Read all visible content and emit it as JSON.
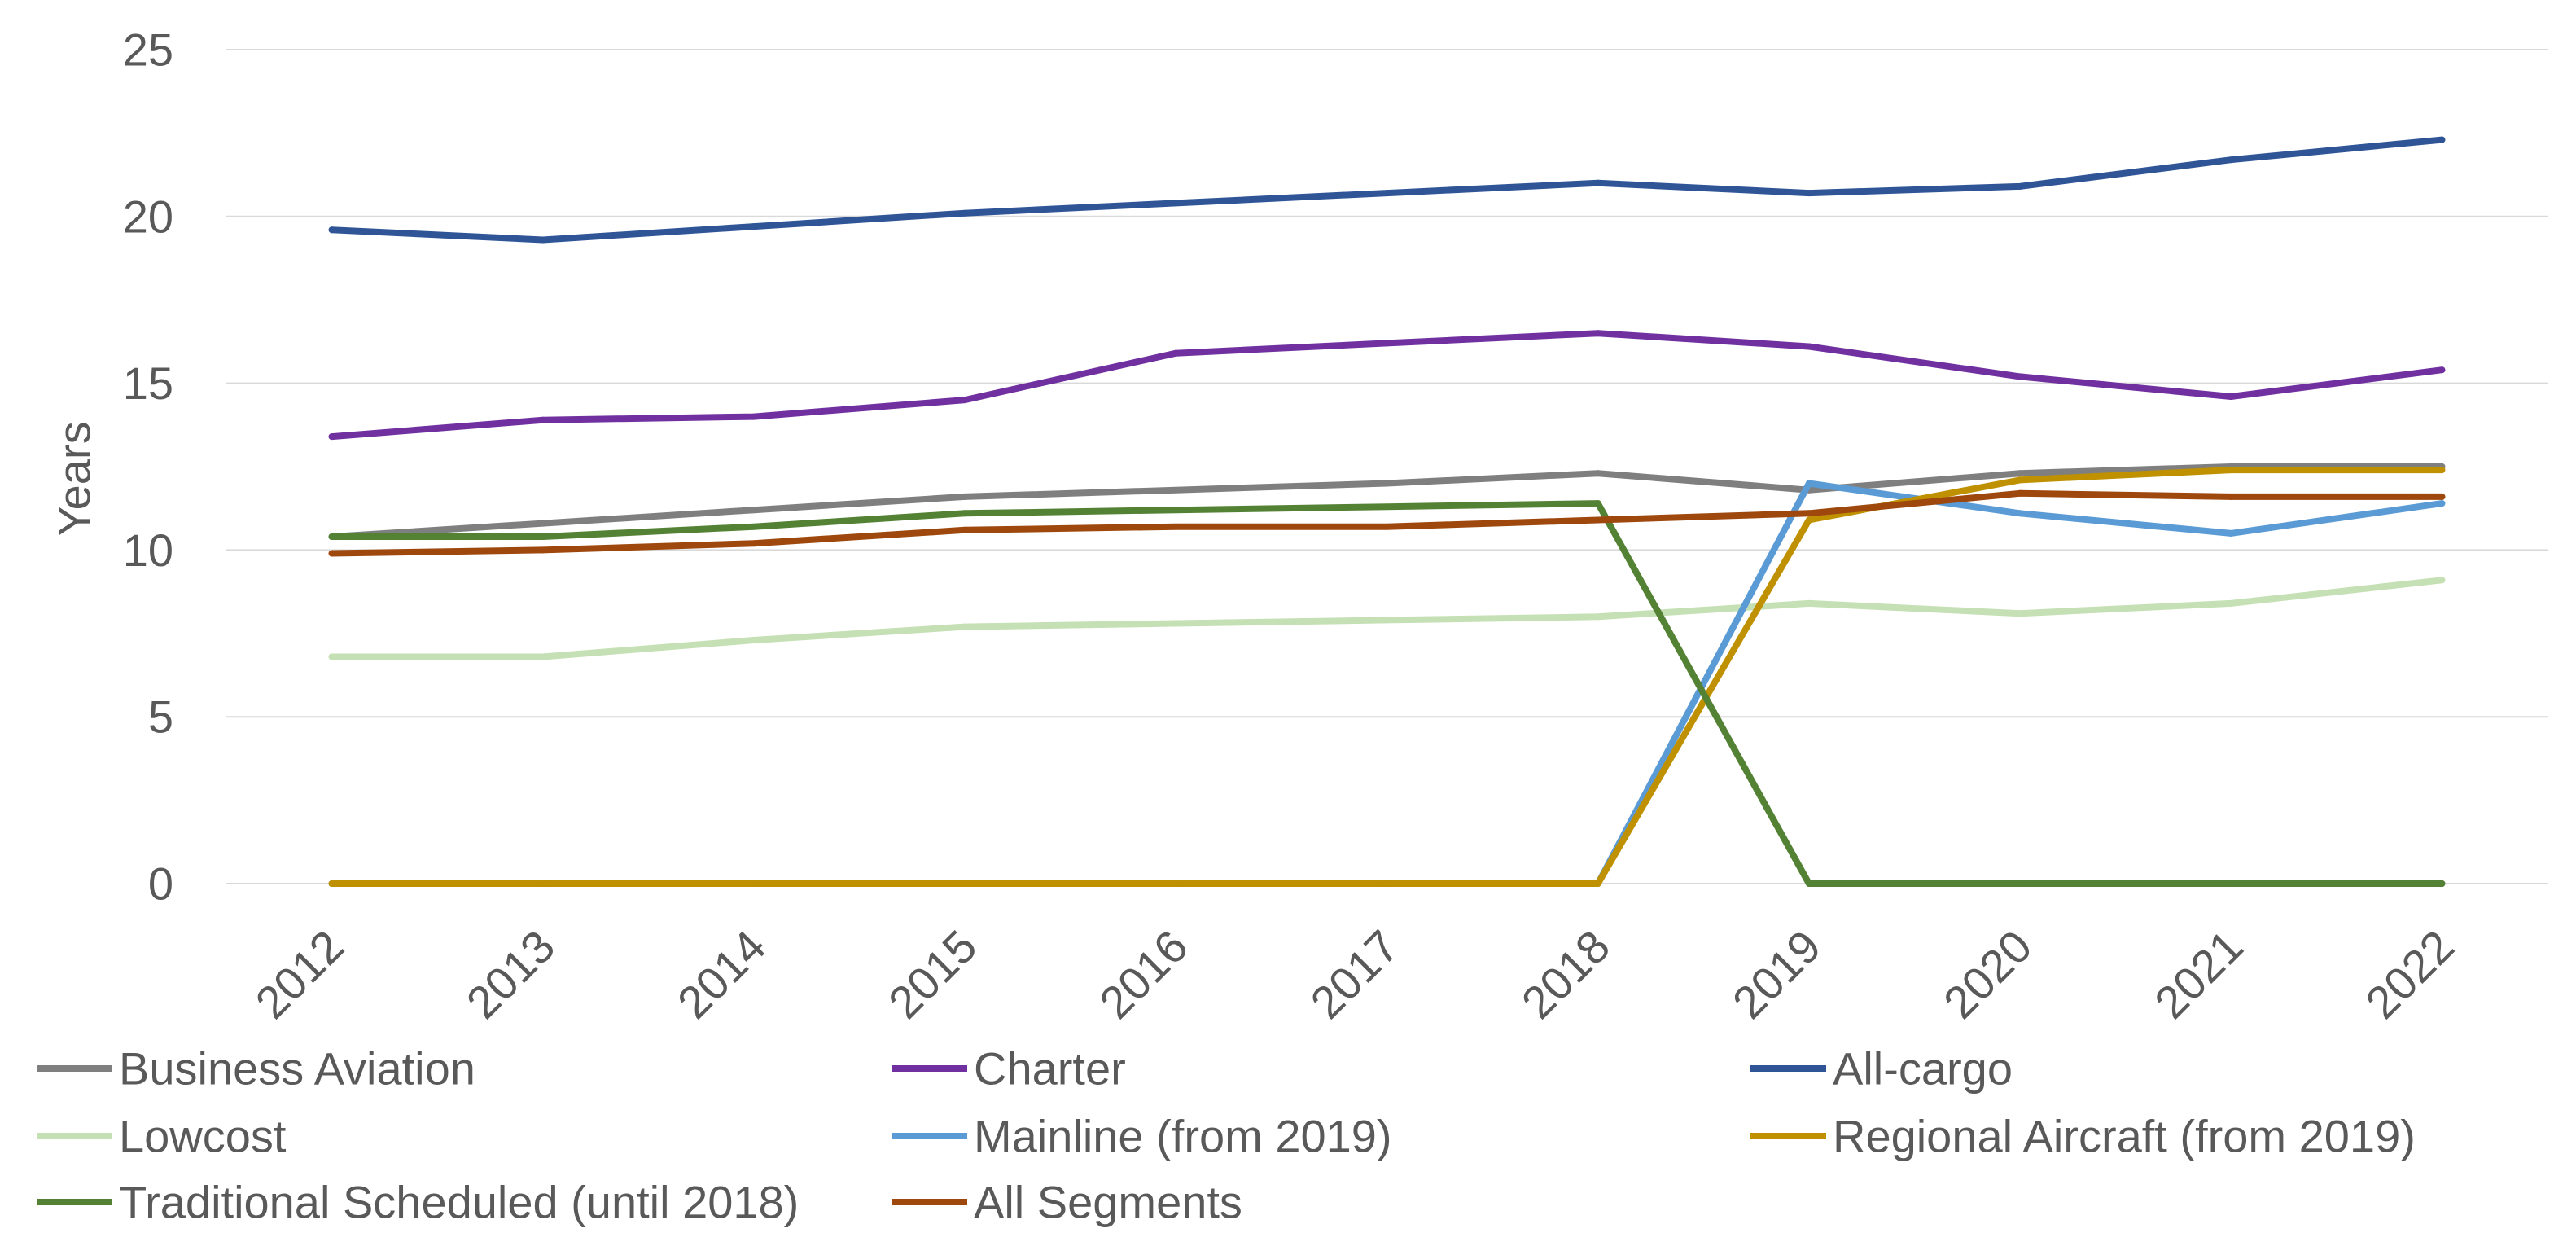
{
  "chart_data": {
    "type": "line",
    "xlabel": "",
    "ylabel": "Years",
    "categories": [
      "2012",
      "2013",
      "2014",
      "2015",
      "2016",
      "2017",
      "2018",
      "2019",
      "2020",
      "2021",
      "2022"
    ],
    "ylim": [
      0,
      25
    ],
    "yticks": [
      0,
      5,
      10,
      15,
      20,
      25
    ],
    "grid": true,
    "legend_position": "bottom",
    "series": [
      {
        "name": "Business Aviation",
        "color": "#7F7F7F",
        "values": [
          10.4,
          10.8,
          11.2,
          11.6,
          11.8,
          12.0,
          12.3,
          11.8,
          12.3,
          12.5,
          12.5
        ]
      },
      {
        "name": "Charter",
        "color": "#7030A0",
        "values": [
          13.4,
          13.9,
          14.0,
          14.5,
          15.9,
          16.2,
          16.5,
          16.1,
          15.2,
          14.6,
          15.4
        ]
      },
      {
        "name": "All-cargo",
        "color": "#2F5597",
        "values": [
          19.6,
          19.3,
          19.7,
          20.1,
          20.4,
          20.7,
          21.0,
          20.7,
          20.9,
          21.7,
          22.3
        ]
      },
      {
        "name": "Lowcost",
        "color": "#C5E0B4",
        "values": [
          6.8,
          6.8,
          7.3,
          7.7,
          7.8,
          7.9,
          8.0,
          8.4,
          8.1,
          8.4,
          9.1
        ]
      },
      {
        "name": "Mainline (from 2019)",
        "color": "#5B9BD5",
        "values": [
          0,
          0,
          0,
          0,
          0,
          0,
          0,
          12.0,
          11.1,
          10.5,
          11.4
        ]
      },
      {
        "name": "Regional Aircraft (from 2019)",
        "color": "#BF9000",
        "values": [
          0,
          0,
          0,
          0,
          0,
          0,
          0,
          10.9,
          12.1,
          12.4,
          12.4
        ]
      },
      {
        "name": "Traditional Scheduled (until 2018)",
        "color": "#548235",
        "values": [
          10.4,
          10.4,
          10.7,
          11.1,
          11.2,
          11.3,
          11.4,
          0,
          0,
          0,
          0
        ]
      },
      {
        "name": "All Segments",
        "color": "#9E480E",
        "values": [
          9.9,
          10.0,
          10.2,
          10.6,
          10.7,
          10.7,
          10.9,
          11.1,
          11.7,
          11.6,
          11.6
        ]
      }
    ],
    "colors": {
      "axis_text": "#595959",
      "gridline": "#D9D9D9",
      "background": "#FFFFFF"
    }
  }
}
